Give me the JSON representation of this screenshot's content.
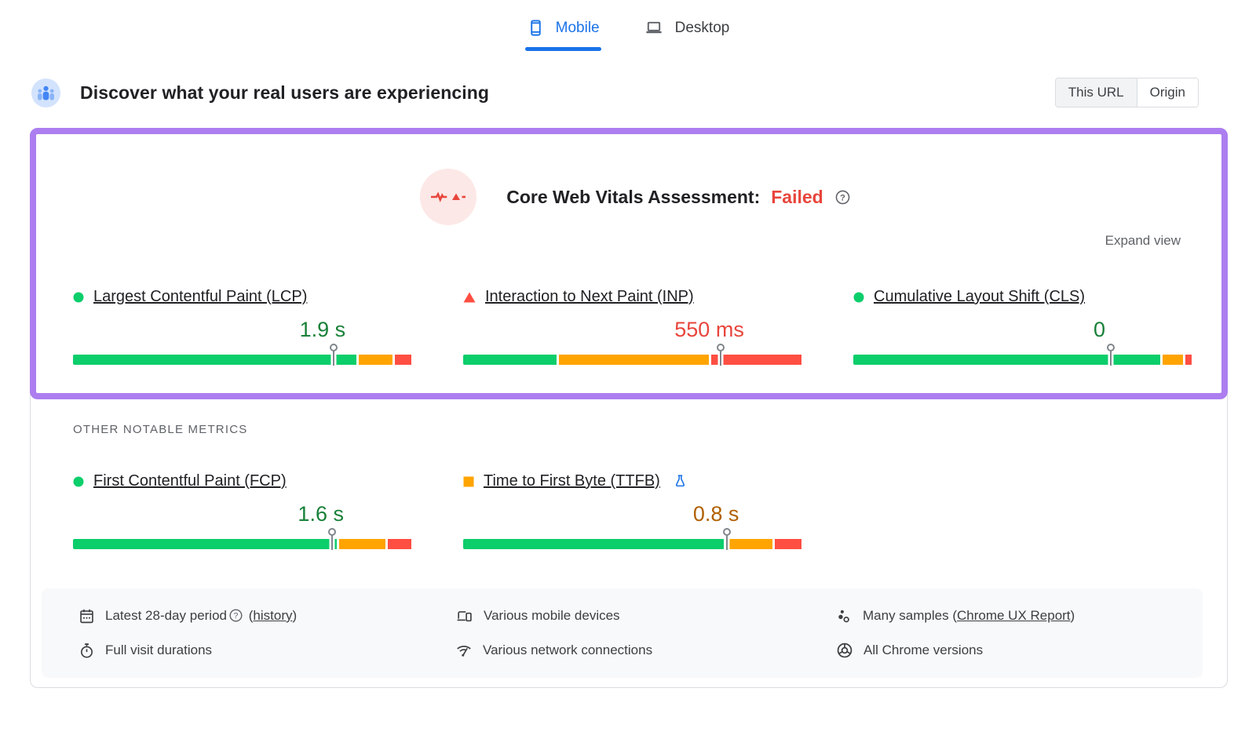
{
  "tabs": [
    {
      "label": "Mobile",
      "active": true
    },
    {
      "label": "Desktop",
      "active": false
    }
  ],
  "header": {
    "title": "Discover what your real users are experiencing",
    "toggle": {
      "options": [
        "This URL",
        "Origin"
      ],
      "selected": "This URL"
    }
  },
  "assessment": {
    "title": "Core Web Vitals Assessment:",
    "status": "Failed",
    "expand_label": "Expand view"
  },
  "core_web_vitals": {
    "metrics": [
      {
        "id": "lcp",
        "label": "Largest Contentful Paint (LCP)",
        "value": "1.9 s",
        "status": "good",
        "distribution": {
          "good": 85,
          "needs_improvement": 10,
          "poor": 5
        },
        "p75_marker_percent": 77
      },
      {
        "id": "inp",
        "label": "Interaction to Next Paint (INP)",
        "value": "550 ms",
        "status": "poor",
        "distribution": {
          "good": 28,
          "needs_improvement": 45,
          "poor": 27
        },
        "p75_marker_percent": 76
      },
      {
        "id": "cls",
        "label": "Cumulative Layout Shift (CLS)",
        "value": "0",
        "status": "good",
        "distribution": {
          "good": 92,
          "needs_improvement": 6,
          "poor": 2
        },
        "p75_marker_percent": 76
      }
    ]
  },
  "other_metrics": {
    "title": "OTHER NOTABLE METRICS",
    "metrics": [
      {
        "id": "fcp",
        "label": "First Contentful Paint (FCP)",
        "value": "1.6 s",
        "status": "good",
        "distribution": {
          "good": 79,
          "needs_improvement": 14,
          "poor": 7
        },
        "p75_marker_percent": 76.5
      },
      {
        "id": "ttfb",
        "label": "Time to First Byte (TTFB)",
        "value": "0.8 s",
        "status": "average",
        "experimental": true,
        "distribution": {
          "good": 78,
          "needs_improvement": 14,
          "poor": 8
        },
        "p75_marker_percent": 78
      }
    ]
  },
  "footnotes": {
    "columns": [
      {
        "items": [
          {
            "icon": "calendar-icon",
            "parts": [
              {
                "t": "Latest 28-day period"
              },
              {
                "help": true
              },
              {
                "t": "("
              },
              {
                "t": "history",
                "link": true
              },
              {
                "t": ")"
              }
            ]
          },
          {
            "icon": "stopwatch-icon",
            "parts": [
              {
                "t": "Full visit durations"
              }
            ]
          }
        ]
      },
      {
        "items": [
          {
            "icon": "devices-icon",
            "parts": [
              {
                "t": "Various mobile devices"
              }
            ]
          },
          {
            "icon": "network-icon",
            "parts": [
              {
                "t": "Various network connections"
              }
            ]
          }
        ]
      },
      {
        "items": [
          {
            "icon": "samples-icon",
            "parts": [
              {
                "t": "Many samples ("
              },
              {
                "t": "Chrome UX Report",
                "link": true
              },
              {
                "t": ")"
              }
            ]
          },
          {
            "icon": "chrome-icon",
            "parts": [
              {
                "t": "All Chrome versions"
              }
            ]
          }
        ]
      }
    ]
  },
  "colors": {
    "accent_blue": "#1a73e8",
    "good": "#0cce6b",
    "average": "#ffa400",
    "poor": "#ff4e42",
    "good_text": "#188038",
    "average_text": "#b06000",
    "poor_text": "#e8453c",
    "highlight_purple": "#ac7ef0"
  }
}
